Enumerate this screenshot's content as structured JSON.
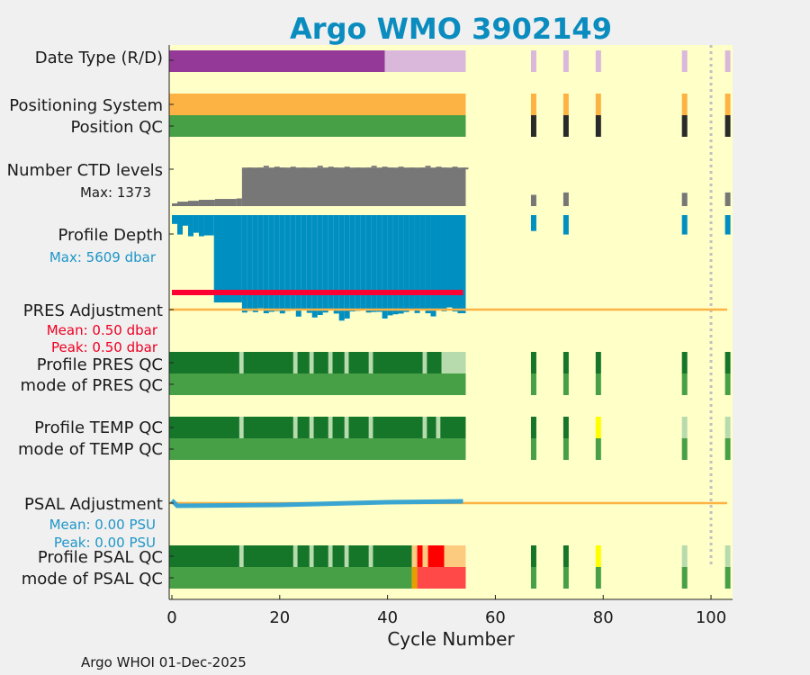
{
  "chart_data": {
    "type": "strip-timeline",
    "title": "Argo WMO 3902149",
    "xlabel": "Cycle Number",
    "xlim": [
      -0.5,
      104
    ],
    "xticks": [
      0,
      20,
      40,
      60,
      80,
      100
    ],
    "footer": "Argo WHOI 01-Dec-2025",
    "row_labels": {
      "date_type": "Date Type (R/D)",
      "positioning_system": "Positioning System",
      "position_qc": "Position QC",
      "ctd_levels": "Number CTD levels",
      "profile_depth": "Profile Depth",
      "pres_adjustment": "PRES Adjustment",
      "profile_pres_qc": "Profile PRES QC",
      "mode_pres_qc": "mode of PRES QC",
      "profile_temp_qc": "Profile TEMP QC",
      "mode_temp_qc": "mode of TEMP QC",
      "psal_adjustment": "PSAL Adjustment",
      "profile_psal_qc": "Profile PSAL QC",
      "mode_psal_qc": "mode of PSAL QC"
    },
    "annotations": {
      "ctd_max": "Max: 1373",
      "depth_max": "Max: 5609 dbar",
      "pres_mean": "Mean: 0.50 dbar",
      "pres_peak": "Peak: 0.50 dbar",
      "psal_mean": "Mean: 0.00 PSU",
      "psal_peak": "Peak: 0.00 PSU"
    },
    "colors": {
      "background": "#ffffc8",
      "title": "#0a8cbf",
      "realtime": "#953998",
      "delayed": "#dab8dc",
      "positioning": "#fdb344",
      "qc_good": "#479f46",
      "qc_dark": "#157529",
      "qc_light": "#b8dbae",
      "qc_black": "#2a2a2a",
      "qc_yellow": "#ffff00",
      "qc_orange": "#fdcb7f",
      "qc_red": "#ff0000",
      "qc_red_light": "#ff4848",
      "qc_amber": "#e69f00",
      "ctd_bar": "#777777",
      "depth_bar": "#008fc1",
      "pres_line": "#ff0033",
      "adj_line": "#fdb344",
      "psal_line": "#3aa5d0",
      "dotted_line": "#c0c0c0",
      "annot_blue": "#1e96c8",
      "annot_red": "#ee0022"
    },
    "dotted_cycle": 100,
    "ctd_levels_max": 1373,
    "ctd_levels": {
      "segments": [
        {
          "cycles": [
            0,
            1
          ],
          "value": 80
        },
        {
          "cycles": [
            1,
            3
          ],
          "value": 130
        },
        {
          "cycles": [
            3,
            5
          ],
          "value": 155
        },
        {
          "cycles": [
            5,
            8
          ],
          "value": 185
        },
        {
          "cycles": [
            8,
            12
          ],
          "value": 210
        },
        {
          "cycles": [
            12,
            13
          ],
          "value": 225
        },
        {
          "cycles": [
            13,
            54.5
          ],
          "value": 1130
        }
      ],
      "later": [
        {
          "cycle": 67,
          "value": 330
        },
        {
          "cycle": 73,
          "value": 400
        },
        {
          "cycle": 95,
          "value": 390
        },
        {
          "cycle": 103,
          "value": 400
        }
      ]
    },
    "profile_depth_max": 5609,
    "profile_depth": {
      "early": [
        {
          "cycles": [
            0,
            1
          ],
          "value": 500
        },
        {
          "cycles": [
            1,
            2
          ],
          "value": 1100
        },
        {
          "cycles": [
            2,
            3
          ],
          "value": 600
        },
        {
          "cycles": [
            3,
            4
          ],
          "value": 1200
        },
        {
          "cycles": [
            4,
            5
          ],
          "value": 1000
        },
        {
          "cycles": [
            5,
            6
          ],
          "value": 1200
        },
        {
          "cycles": [
            6,
            7.8
          ],
          "value": 1150
        },
        {
          "cycles": [
            7.8,
            13
          ],
          "value": 4950
        }
      ],
      "base_depth": 5100,
      "late_start": 13,
      "late_end": 54.5,
      "late_extra": [
        420,
        330,
        400,
        180,
        460,
        380,
        340,
        470,
        330,
        300,
        650,
        280,
        440,
        700,
        560,
        420,
        200,
        480,
        880,
        760,
        360,
        330,
        260,
        420,
        390,
        380,
        760,
        580,
        520,
        480,
        390,
        310,
        450,
        210,
        460,
        640,
        260,
        350,
        130,
        360,
        460,
        460
      ],
      "later": [
        {
          "cycle": 67,
          "value": 900
        },
        {
          "cycle": 73,
          "value": 1100
        },
        {
          "cycle": 95,
          "value": 1100
        },
        {
          "cycle": 103,
          "value": 1100
        }
      ]
    },
    "date_type": [
      {
        "cycles": [
          -0.5,
          39.5
        ],
        "mode": "realtime"
      },
      {
        "cycles": [
          39.5,
          54.5
        ],
        "mode": "delayed"
      }
    ],
    "later_cycles": [
      67,
      73,
      79,
      95,
      103
    ],
    "pos_later_cycles": [
      67,
      73,
      79,
      95,
      103
    ],
    "pres_adjustment": {
      "line_cycles": [
        0,
        54
      ],
      "offset_line_end": 103
    },
    "profile_pres_qc": {
      "dark_range": [
        -0.5,
        54.5
      ],
      "light_ticks": [
        13,
        23,
        26,
        29.5,
        32.5,
        37,
        47,
        50.5
      ],
      "light_tail": [
        50.5,
        54.5
      ],
      "later": [
        {
          "cycle": 67,
          "color": "qc_dark"
        },
        {
          "cycle": 73,
          "color": "qc_dark"
        },
        {
          "cycle": 79,
          "color": "qc_dark"
        },
        {
          "cycle": 95,
          "color": "qc_dark"
        },
        {
          "cycle": 103,
          "color": "qc_dark"
        }
      ]
    },
    "profile_temp_qc": {
      "dark_range": [
        -0.5,
        54.5
      ],
      "light_ticks": [
        13,
        23,
        26,
        29.5,
        32.5,
        37,
        47,
        49.5
      ],
      "later": [
        {
          "cycle": 67,
          "color": "qc_dark"
        },
        {
          "cycle": 73,
          "color": "qc_dark"
        },
        {
          "cycle": 79,
          "color": "qc_yellow"
        },
        {
          "cycle": 95,
          "color": "qc_light"
        },
        {
          "cycle": 103,
          "color": "qc_light"
        }
      ]
    },
    "profile_psal_qc": {
      "dark_range": [
        -0.5,
        44.5
      ],
      "light_ticks": [
        13,
        23,
        26,
        29.5,
        32.5,
        37
      ],
      "tail": [
        {
          "cycles": [
            44.5,
            45.5
          ],
          "color": "qc_orange"
        },
        {
          "cycles": [
            45.5,
            46.5
          ],
          "color": "qc_red"
        },
        {
          "cycles": [
            46.5,
            47.5
          ],
          "color": "qc_orange"
        },
        {
          "cycles": [
            47.5,
            50.5
          ],
          "color": "qc_red"
        },
        {
          "cycles": [
            50.5,
            54.5
          ],
          "color": "qc_orange"
        }
      ],
      "later": [
        {
          "cycle": 67,
          "color": "qc_dark"
        },
        {
          "cycle": 73,
          "color": "qc_dark"
        },
        {
          "cycle": 79,
          "color": "qc_yellow"
        },
        {
          "cycle": 95,
          "color": "qc_light"
        },
        {
          "cycle": 103,
          "color": "qc_light"
        }
      ]
    },
    "mode_psal_qc": {
      "good_range": [
        -0.5,
        44.5
      ],
      "tail": [
        {
          "cycles": [
            44.5,
            45.5
          ],
          "color": "qc_amber"
        },
        {
          "cycles": [
            45.5,
            54.5
          ],
          "color": "qc_red_light"
        }
      ]
    }
  }
}
